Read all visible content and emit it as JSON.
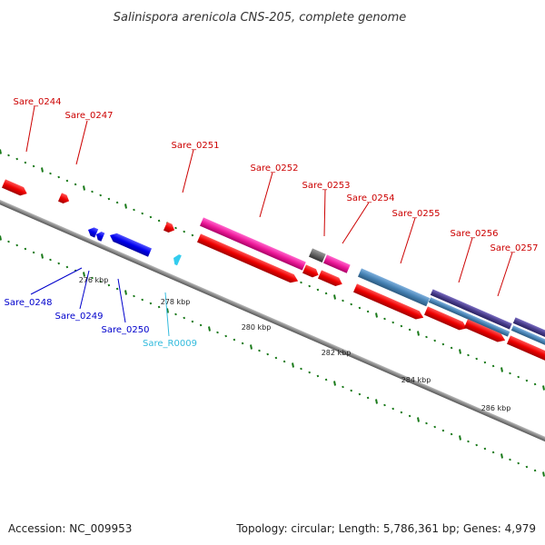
{
  "title": "Salinispora arenicola CNS-205, complete genome",
  "accession": "Accession: NC_009953",
  "summary": "Topology: circular; Length: 5,786,361 bp; Genes: 4,979",
  "kbp_labels": [
    "276 kbp",
    "278 kbp",
    "280 kbp",
    "282 kbp",
    "284 kbp",
    "286 kbp"
  ],
  "forward_labels": [
    "Sare_0244",
    "Sare_0247",
    "Sare_0251",
    "Sare_0252",
    "Sare_0253",
    "Sare_0254",
    "Sare_0255",
    "Sare_0256",
    "Sare_0257"
  ],
  "reverse_labels": [
    "Sare_0248",
    "Sare_0249",
    "Sare_0250",
    "Sare_R0009"
  ],
  "colors": {
    "forward_label": "#cc0000",
    "reverse_label": "#0000cc",
    "rna_label": "#33bbdd",
    "gene_red": "#ee0000",
    "gene_blue": "#0000ee",
    "gene_cyan": "#33ccee",
    "feature_pink": "#ee1a9a",
    "feature_gray": "#666666",
    "feature_steel": "#4682b4",
    "feature_purple": "#483d8b",
    "tick_green": "#1a7a1a",
    "backbone": "#888888"
  }
}
